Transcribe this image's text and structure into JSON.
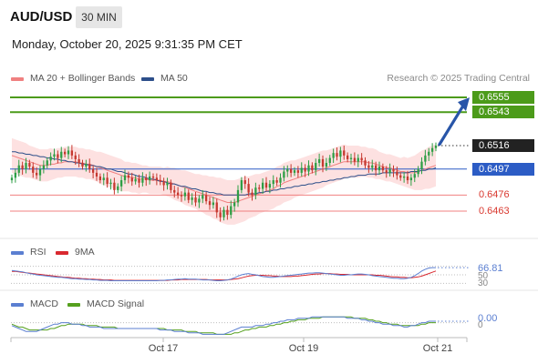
{
  "header": {
    "symbol": "AUD/USD",
    "timeframe": "30 MIN",
    "datetime": "Monday, October 20, 2025 9:31:35 PM CET",
    "credit": "Research © 2025 Trading Central"
  },
  "legend": {
    "ma20_label": "MA 20 + Bollinger Bands",
    "ma50_label": "MA 50",
    "ma20_color": "#f08080",
    "ma50_color": "#2d4f8a"
  },
  "colors": {
    "up": "#2e9e45",
    "down": "#c6382f",
    "target": "#4c9b1a",
    "support": "#2c5cc5",
    "resistance_level": "#f08080",
    "bollinger_fill": "#fde1e1",
    "arrow": "#2855a8",
    "rsi": "#5b7fd1",
    "rsi_ma": "#d9282f",
    "macd": "#5b7fd1",
    "macd_signal": "#55a01e"
  },
  "chart_data": [
    {
      "type": "line",
      "name": "price",
      "x_range": [
        "Oct 16",
        "Oct 21"
      ],
      "ylim": [
        0.644,
        0.6565
      ],
      "levels": [
        {
          "value": 0.6555,
          "label": "0.6555",
          "kind": "target"
        },
        {
          "value": 0.6543,
          "label": "0.6543",
          "kind": "target"
        },
        {
          "value": 0.6516,
          "label": "0.6516",
          "kind": "current"
        },
        {
          "value": 0.6497,
          "label": "0.6497",
          "kind": "pivot"
        },
        {
          "value": 0.6476,
          "label": "0.6476",
          "kind": "support"
        },
        {
          "value": 0.6463,
          "label": "0.6463",
          "kind": "support"
        }
      ],
      "x_ticks": [
        "Oct 17",
        "Oct 19",
        "Oct 21"
      ],
      "close": [
        0.649,
        0.6494,
        0.65,
        0.6497,
        0.6502,
        0.6499,
        0.6494,
        0.6492,
        0.6497,
        0.65,
        0.6504,
        0.6507,
        0.6509,
        0.6506,
        0.6511,
        0.6509,
        0.6512,
        0.6508,
        0.6505,
        0.6502,
        0.6499,
        0.6501,
        0.6497,
        0.6494,
        0.6491,
        0.6488,
        0.649,
        0.6485,
        0.6486,
        0.648,
        0.6483,
        0.6488,
        0.6492,
        0.649,
        0.6487,
        0.6489,
        0.6486,
        0.649,
        0.6488,
        0.6491,
        0.649,
        0.6488,
        0.6487,
        0.6484,
        0.6486,
        0.648,
        0.6478,
        0.6476,
        0.6475,
        0.6478,
        0.6472,
        0.6474,
        0.647,
        0.6473,
        0.6476,
        0.6471,
        0.6468,
        0.647,
        0.6462,
        0.6458,
        0.6464,
        0.646,
        0.6467,
        0.647,
        0.648,
        0.6488,
        0.6485,
        0.6478,
        0.6476,
        0.6482,
        0.6481,
        0.6486,
        0.6482,
        0.6485,
        0.6488,
        0.6486,
        0.649,
        0.6495,
        0.6497,
        0.6494,
        0.6496,
        0.6494,
        0.6498,
        0.6495,
        0.65,
        0.6496,
        0.6502,
        0.6505,
        0.6499,
        0.6502,
        0.6506,
        0.651,
        0.6507,
        0.6512,
        0.6508,
        0.6505,
        0.6506,
        0.6503,
        0.6506,
        0.6504,
        0.65,
        0.6498,
        0.65,
        0.6496,
        0.6499,
        0.6496,
        0.6494,
        0.6497,
        0.6495,
        0.6492,
        0.649,
        0.6491,
        0.6488,
        0.649,
        0.6493,
        0.6497,
        0.6503,
        0.6508,
        0.6511,
        0.6514,
        0.6516
      ],
      "ma20": [
        0.6508,
        0.6507,
        0.6506,
        0.6505,
        0.6504,
        0.6503,
        0.6502,
        0.6501,
        0.65,
        0.65,
        0.65,
        0.6501,
        0.6501,
        0.6502,
        0.6502,
        0.6503,
        0.6503,
        0.6503,
        0.6503,
        0.6502,
        0.6502,
        0.6501,
        0.6501,
        0.65,
        0.6499,
        0.6498,
        0.6497,
        0.6496,
        0.6495,
        0.6494,
        0.6493,
        0.6492,
        0.6491,
        0.6491,
        0.649,
        0.649,
        0.6489,
        0.6489,
        0.6489,
        0.6488,
        0.6488,
        0.6488,
        0.6488,
        0.6487,
        0.6487,
        0.6486,
        0.6485,
        0.6484,
        0.6483,
        0.6482,
        0.6481,
        0.648,
        0.6479,
        0.6478,
        0.6477,
        0.6476,
        0.6475,
        0.6474,
        0.6473,
        0.6472,
        0.6471,
        0.647,
        0.647,
        0.647,
        0.6471,
        0.6472,
        0.6473,
        0.6474,
        0.6475,
        0.6476,
        0.6477,
        0.6478,
        0.6479,
        0.648,
        0.6481,
        0.6483,
        0.6484,
        0.6486,
        0.6487,
        0.6488,
        0.6489,
        0.649,
        0.6491,
        0.6492,
        0.6493,
        0.6494,
        0.6495,
        0.6496,
        0.6497,
        0.6498,
        0.6499,
        0.65,
        0.6501,
        0.6502,
        0.6503,
        0.6503,
        0.6503,
        0.6503,
        0.6503,
        0.6503,
        0.6503,
        0.6502,
        0.6502,
        0.6501,
        0.65,
        0.6499,
        0.6498,
        0.6498,
        0.6497,
        0.6496,
        0.6495,
        0.6495,
        0.6494,
        0.6494,
        0.6494,
        0.6495,
        0.6496,
        0.6497,
        0.6498,
        0.6499,
        0.65
      ],
      "bb_width": [
        0.0014,
        0.0014,
        0.0014,
        0.0014,
        0.0014,
        0.0013,
        0.0013,
        0.0013,
        0.0013,
        0.0013,
        0.0013,
        0.0013,
        0.0012,
        0.0012,
        0.0012,
        0.0012,
        0.0012,
        0.0012,
        0.0012,
        0.0012,
        0.0012,
        0.0012,
        0.0012,
        0.0012,
        0.0012,
        0.0013,
        0.0013,
        0.0013,
        0.0013,
        0.0013,
        0.0013,
        0.0013,
        0.0012,
        0.0012,
        0.0012,
        0.0012,
        0.0012,
        0.0011,
        0.0011,
        0.0011,
        0.0011,
        0.0011,
        0.0011,
        0.0011,
        0.0012,
        0.0012,
        0.0013,
        0.0013,
        0.0013,
        0.0014,
        0.0014,
        0.0014,
        0.0014,
        0.0015,
        0.0015,
        0.0016,
        0.0016,
        0.0017,
        0.0017,
        0.0018,
        0.0018,
        0.0018,
        0.0018,
        0.0018,
        0.0018,
        0.0018,
        0.0018,
        0.0017,
        0.0017,
        0.0017,
        0.0016,
        0.0016,
        0.0016,
        0.0016,
        0.0016,
        0.0016,
        0.0016,
        0.0016,
        0.0016,
        0.0016,
        0.0015,
        0.0015,
        0.0015,
        0.0015,
        0.0015,
        0.0015,
        0.0015,
        0.0015,
        0.0015,
        0.0014,
        0.0014,
        0.0014,
        0.0014,
        0.0014,
        0.0014,
        0.0013,
        0.0013,
        0.0013,
        0.0013,
        0.0012,
        0.0012,
        0.0012,
        0.0012,
        0.0012,
        0.0011,
        0.0011,
        0.0011,
        0.0011,
        0.0011,
        0.0011,
        0.0011,
        0.0012,
        0.0012,
        0.0013,
        0.0014,
        0.0015,
        0.0016,
        0.0016,
        0.0017,
        0.0017,
        0.0017
      ],
      "ma50": [
        0.6511,
        0.6511,
        0.651,
        0.651,
        0.6509,
        0.6509,
        0.6508,
        0.6508,
        0.6507,
        0.6507,
        0.6506,
        0.6506,
        0.6505,
        0.6505,
        0.6504,
        0.6504,
        0.6503,
        0.6503,
        0.6502,
        0.6502,
        0.6501,
        0.6501,
        0.65,
        0.65,
        0.6499,
        0.6499,
        0.6498,
        0.6497,
        0.6497,
        0.6496,
        0.6495,
        0.6495,
        0.6494,
        0.6493,
        0.6493,
        0.6492,
        0.6491,
        0.6491,
        0.649,
        0.6489,
        0.6489,
        0.6488,
        0.6487,
        0.6487,
        0.6486,
        0.6485,
        0.6485,
        0.6484,
        0.6483,
        0.6483,
        0.6482,
        0.6481,
        0.6481,
        0.648,
        0.6479,
        0.6479,
        0.6478,
        0.6478,
        0.6477,
        0.6477,
        0.6476,
        0.6476,
        0.6476,
        0.6476,
        0.6476,
        0.6476,
        0.6476,
        0.6477,
        0.6477,
        0.6477,
        0.6478,
        0.6478,
        0.6479,
        0.6479,
        0.648,
        0.648,
        0.6481,
        0.6481,
        0.6482,
        0.6482,
        0.6483,
        0.6483,
        0.6484,
        0.6484,
        0.6485,
        0.6485,
        0.6486,
        0.6486,
        0.6487,
        0.6487,
        0.6488,
        0.6488,
        0.6489,
        0.6489,
        0.649,
        0.649,
        0.6491,
        0.6491,
        0.6492,
        0.6492,
        0.6492,
        0.6493,
        0.6493,
        0.6493,
        0.6493,
        0.6494,
        0.6494,
        0.6494,
        0.6494,
        0.6494,
        0.6494,
        0.6494,
        0.6494,
        0.6495,
        0.6495,
        0.6495,
        0.6496,
        0.6496,
        0.6497,
        0.6497,
        0.6498
      ]
    },
    {
      "type": "line",
      "name": "RSI",
      "legend": [
        "RSI",
        "9MA"
      ],
      "ylim": [
        20,
        80
      ],
      "ticks": [
        "50",
        "30"
      ],
      "value_label": "66.81",
      "rsi": [
        60,
        59,
        58,
        57,
        55,
        53,
        52,
        50,
        49,
        48,
        47,
        46,
        45,
        44,
        44,
        43,
        42,
        41,
        41,
        40,
        40,
        39,
        39,
        38,
        38,
        37,
        37,
        37,
        36,
        36,
        36,
        36,
        36,
        36,
        36,
        36,
        36,
        36,
        36,
        36,
        36,
        36,
        37,
        37,
        38,
        38,
        39,
        40,
        40,
        41,
        40,
        40,
        40,
        39,
        38,
        38,
        38,
        37,
        36,
        36,
        37,
        38,
        40,
        43,
        47,
        50,
        52,
        53,
        51,
        50,
        48,
        46,
        45,
        44,
        44,
        45,
        46,
        47,
        48,
        49,
        50,
        51,
        52,
        53,
        54,
        54,
        55,
        55,
        54,
        53,
        52,
        51,
        50,
        49,
        49,
        50,
        50,
        51,
        52,
        52,
        51,
        50,
        48,
        47,
        46,
        45,
        44,
        43,
        42,
        42,
        41,
        41,
        42,
        44,
        48,
        53,
        59,
        63,
        66,
        67,
        67
      ],
      "ma9": [
        58,
        58,
        57,
        56,
        55,
        54,
        53,
        52,
        51,
        50,
        49,
        48,
        47,
        46,
        45,
        44,
        44,
        43,
        42,
        42,
        41,
        41,
        40,
        40,
        39,
        39,
        38,
        38,
        38,
        37,
        37,
        37,
        37,
        37,
        37,
        37,
        37,
        37,
        37,
        37,
        37,
        37,
        37,
        37,
        37,
        38,
        38,
        38,
        39,
        39,
        39,
        39,
        39,
        39,
        39,
        39,
        38,
        38,
        38,
        38,
        38,
        38,
        39,
        40,
        41,
        43,
        45,
        47,
        48,
        49,
        49,
        49,
        48,
        48,
        47,
        47,
        46,
        46,
        46,
        46,
        47,
        47,
        48,
        49,
        50,
        51,
        52,
        52,
        53,
        53,
        53,
        52,
        52,
        51,
        51,
        51,
        50,
        50,
        50,
        50,
        50,
        50,
        50,
        49,
        49,
        48,
        47,
        46,
        45,
        45,
        44,
        44,
        43,
        43,
        44,
        45,
        47,
        50,
        53,
        56,
        59
      ]
    },
    {
      "type": "line",
      "name": "MACD",
      "legend": [
        "MACD",
        "MACD Signal"
      ],
      "ylim": [
        -0.0009,
        0.0006
      ],
      "ticks": [
        "0"
      ],
      "value_label": "0.00",
      "macd": [
        -0.0002,
        -0.0003,
        -0.0004,
        -0.0005,
        -0.0006,
        -0.0006,
        -0.0006,
        -0.0006,
        -0.0005,
        -0.0004,
        -0.0003,
        -0.0002,
        -0.0001,
        -0.0001,
        0.0,
        0.0,
        0.0,
        -0.0001,
        -0.0001,
        -0.0001,
        -0.0002,
        -0.0002,
        -0.0003,
        -0.0003,
        -0.0003,
        -0.0003,
        -0.0004,
        -0.0004,
        -0.0004,
        -0.0004,
        -0.0004,
        -0.0004,
        -0.0004,
        -0.0004,
        -0.0004,
        -0.0004,
        -0.0004,
        -0.0004,
        -0.0004,
        -0.0004,
        -0.0004,
        -0.0004,
        -0.0005,
        -0.0005,
        -0.0005,
        -0.0005,
        -0.0006,
        -0.0006,
        -0.0006,
        -0.0006,
        -0.0007,
        -0.0007,
        -0.0007,
        -0.0007,
        -0.0008,
        -0.0008,
        -0.0008,
        -0.0008,
        -0.0008,
        -0.0008,
        -0.0008,
        -0.0007,
        -0.0006,
        -0.0005,
        -0.0004,
        -0.0003,
        -0.0003,
        -0.0003,
        -0.0003,
        -0.0002,
        -0.0002,
        -0.0002,
        -0.0001,
        -0.0001,
        0.0,
        0.0,
        0.0001,
        0.0001,
        0.0002,
        0.0002,
        0.0002,
        0.0003,
        0.0003,
        0.0003,
        0.0003,
        0.0004,
        0.0004,
        0.0004,
        0.0004,
        0.0004,
        0.0004,
        0.0004,
        0.0004,
        0.0004,
        0.0004,
        0.0003,
        0.0003,
        0.0003,
        0.0003,
        0.0002,
        0.0002,
        0.0001,
        0.0001,
        0.0,
        0.0,
        -0.0001,
        -0.0001,
        -0.0001,
        -0.0002,
        -0.0002,
        -0.0002,
        -0.0003,
        -0.0003,
        -0.0002,
        -0.0002,
        -0.0001,
        0.0,
        0.0,
        0.0001,
        0.0001,
        0.0001
      ],
      "signal": [
        -0.0001,
        -0.0002,
        -0.0003,
        -0.0003,
        -0.0004,
        -0.0005,
        -0.0005,
        -0.0005,
        -0.0005,
        -0.0005,
        -0.0005,
        -0.0004,
        -0.0004,
        -0.0003,
        -0.0002,
        -0.0002,
        -0.0001,
        -0.0001,
        -0.0001,
        -0.0001,
        -0.0001,
        -0.0002,
        -0.0002,
        -0.0002,
        -0.0002,
        -0.0003,
        -0.0003,
        -0.0003,
        -0.0003,
        -0.0003,
        -0.0004,
        -0.0004,
        -0.0004,
        -0.0004,
        -0.0004,
        -0.0004,
        -0.0004,
        -0.0004,
        -0.0004,
        -0.0004,
        -0.0004,
        -0.0004,
        -0.0004,
        -0.0004,
        -0.0005,
        -0.0005,
        -0.0005,
        -0.0005,
        -0.0005,
        -0.0006,
        -0.0006,
        -0.0006,
        -0.0006,
        -0.0007,
        -0.0007,
        -0.0007,
        -0.0007,
        -0.0007,
        -0.0008,
        -0.0008,
        -0.0008,
        -0.0008,
        -0.0008,
        -0.0007,
        -0.0007,
        -0.0006,
        -0.0005,
        -0.0005,
        -0.0004,
        -0.0004,
        -0.0003,
        -0.0003,
        -0.0003,
        -0.0002,
        -0.0002,
        -0.0001,
        -0.0001,
        0.0,
        0.0,
        0.0001,
        0.0001,
        0.0002,
        0.0002,
        0.0002,
        0.0003,
        0.0003,
        0.0003,
        0.0003,
        0.0004,
        0.0004,
        0.0004,
        0.0004,
        0.0004,
        0.0004,
        0.0004,
        0.0004,
        0.0004,
        0.0003,
        0.0003,
        0.0003,
        0.0003,
        0.0002,
        0.0002,
        0.0001,
        0.0001,
        0.0,
        0.0,
        -0.0001,
        -0.0001,
        -0.0001,
        -0.0002,
        -0.0002,
        -0.0002,
        -0.0002,
        -0.0002,
        -0.0002,
        -0.0001,
        -0.0001,
        0.0,
        0.0,
        0.0
      ]
    }
  ]
}
